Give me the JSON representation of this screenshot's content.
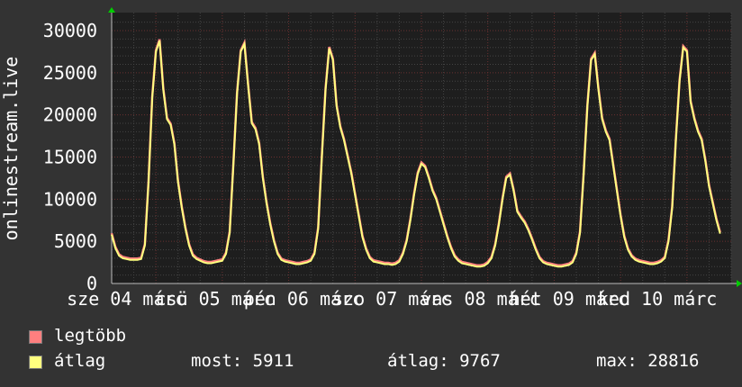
{
  "chart_data": {
    "type": "line",
    "ylabel": "onlinestream.live",
    "ylim": [
      0,
      30000
    ],
    "yticks": [
      0,
      5000,
      10000,
      15000,
      20000,
      25000,
      30000
    ],
    "xtick_labels": [
      "sze 04 márc",
      "csü 05 márc",
      "pén 06 márc",
      "szo 07 márc",
      "vas 08 márc",
      "hét 09 márc",
      "ked 10 márc"
    ],
    "grid": true,
    "x_start": "03-04 08:00",
    "step_hours": 1,
    "series": [
      {
        "name": "legtöbb",
        "color": "#ff7f7f"
      },
      {
        "name": "átlag",
        "color": "#ffff7f",
        "values": [
          5800,
          4200,
          3300,
          3000,
          2900,
          2800,
          2800,
          2800,
          2900,
          4500,
          12000,
          22000,
          27500,
          28800,
          23000,
          19500,
          18800,
          16500,
          12000,
          9000,
          6500,
          4500,
          3300,
          2900,
          2700,
          2500,
          2400,
          2400,
          2500,
          2600,
          2700,
          3500,
          6000,
          14000,
          22500,
          27500,
          28400,
          23500,
          19000,
          18300,
          16500,
          12500,
          9500,
          7000,
          5000,
          3500,
          2800,
          2600,
          2500,
          2400,
          2300,
          2300,
          2400,
          2500,
          2700,
          3500,
          6500,
          15000,
          23000,
          27900,
          26500,
          21000,
          18500,
          17000,
          15000,
          13000,
          10500,
          8000,
          5500,
          4000,
          3000,
          2600,
          2500,
          2400,
          2300,
          2300,
          2200,
          2300,
          2600,
          3500,
          5000,
          7500,
          10500,
          13000,
          14200,
          13800,
          12500,
          11000,
          10000,
          8500,
          7000,
          5500,
          4200,
          3200,
          2700,
          2400,
          2300,
          2200,
          2100,
          2000,
          2000,
          2100,
          2400,
          3000,
          4500,
          7000,
          10000,
          12500,
          12900,
          11000,
          8500,
          7800,
          7200,
          6300,
          5200,
          4000,
          3000,
          2500,
          2300,
          2200,
          2100,
          2000,
          2000,
          2100,
          2200,
          2500,
          3500,
          6000,
          13000,
          21000,
          26500,
          27200,
          23000,
          19500,
          18000,
          17000,
          14000,
          11000,
          8000,
          5500,
          4000,
          3200,
          2800,
          2600,
          2500,
          2400,
          2300,
          2300,
          2400,
          2600,
          3000,
          5000,
          9000,
          17000,
          24000,
          28000,
          27500,
          21500,
          19500,
          18000,
          17000,
          14500,
          11500,
          9500,
          7500,
          5911
        ]
      }
    ],
    "legend": {
      "max_label": "legtöbb",
      "avg_label": "átlag",
      "now": "most: 5911",
      "avg": "átlag: 9767",
      "max": "max: 28816"
    }
  }
}
